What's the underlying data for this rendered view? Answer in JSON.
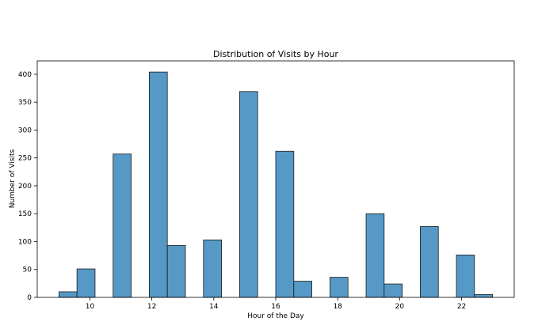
{
  "chart_data": {
    "type": "bar",
    "title": "Distribution of Visits by Hour",
    "xlabel": "Hour of the Day",
    "ylabel": "Number of Visits",
    "bin_width": 0.583,
    "bins": [
      {
        "left": 9.0,
        "value": 10
      },
      {
        "left": 9.583,
        "value": 51
      },
      {
        "left": 10.75,
        "value": 257
      },
      {
        "left": 11.917,
        "value": 404
      },
      {
        "left": 12.5,
        "value": 93
      },
      {
        "left": 13.667,
        "value": 103
      },
      {
        "left": 14.833,
        "value": 369
      },
      {
        "left": 16.0,
        "value": 262
      },
      {
        "left": 16.583,
        "value": 29
      },
      {
        "left": 17.75,
        "value": 36
      },
      {
        "left": 18.917,
        "value": 150
      },
      {
        "left": 19.5,
        "value": 24
      },
      {
        "left": 20.667,
        "value": 127
      },
      {
        "left": 21.833,
        "value": 76
      },
      {
        "left": 22.417,
        "value": 5
      }
    ],
    "x_ticks": [
      10,
      12,
      14,
      16,
      18,
      20,
      22
    ],
    "y_ticks": [
      0,
      50,
      100,
      150,
      200,
      250,
      300,
      350,
      400
    ],
    "xlim": [
      8.3,
      23.7
    ],
    "ylim": [
      0,
      424
    ],
    "grid": false,
    "bar_color": "#5699c6",
    "edge_color": "#1a1a1a"
  }
}
